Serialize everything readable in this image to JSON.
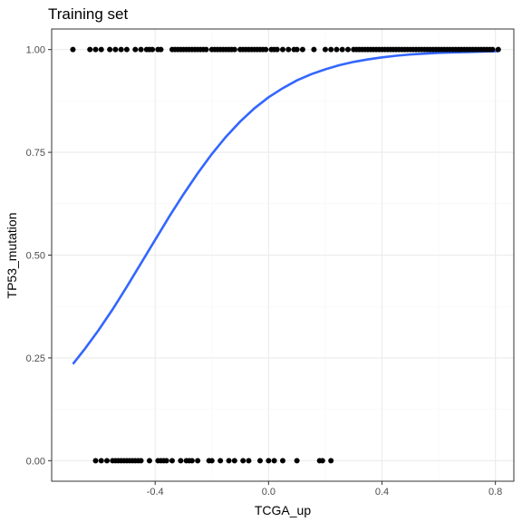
{
  "chart_data": {
    "type": "scatter",
    "title": "Training set",
    "xlabel": "TCGA_up",
    "ylabel": "TP53_mutation",
    "xlim": [
      -0.765,
      0.865
    ],
    "ylim": [
      -0.05,
      1.05
    ],
    "x_ticks": [
      -0.4,
      0.0,
      0.4,
      0.8
    ],
    "x_tick_labels": [
      "-0.4",
      "0.0",
      "0.4",
      "0.8"
    ],
    "y_ticks": [
      0.0,
      0.25,
      0.5,
      0.75,
      1.0
    ],
    "y_tick_labels": [
      "0.00",
      "0.25",
      "0.50",
      "0.75",
      "1.00"
    ],
    "grid": true,
    "legend": "none",
    "colors": {
      "points": "#000000",
      "fit_line": "#3366ff",
      "grid_major": "#ebebeb",
      "grid_minor": "#f5f5f5",
      "panel_border": "#333333"
    },
    "points_y1": [
      -0.69,
      -0.63,
      -0.61,
      -0.59,
      -0.56,
      -0.54,
      -0.52,
      -0.5,
      -0.47,
      -0.45,
      -0.43,
      -0.42,
      -0.41,
      -0.39,
      -0.38,
      -0.34,
      -0.33,
      -0.32,
      -0.31,
      -0.3,
      -0.29,
      -0.28,
      -0.27,
      -0.26,
      -0.25,
      -0.24,
      -0.23,
      -0.22,
      -0.2,
      -0.19,
      -0.18,
      -0.17,
      -0.16,
      -0.15,
      -0.14,
      -0.13,
      -0.12,
      -0.1,
      -0.09,
      -0.08,
      -0.07,
      -0.06,
      -0.05,
      -0.04,
      -0.03,
      -0.02,
      -0.01,
      0.01,
      0.02,
      0.03,
      0.05,
      0.07,
      0.09,
      0.1,
      0.12,
      0.16,
      0.2,
      0.22,
      0.24,
      0.26,
      0.28,
      0.3,
      0.31,
      0.32,
      0.33,
      0.34,
      0.35,
      0.36,
      0.37,
      0.38,
      0.39,
      0.4,
      0.41,
      0.42,
      0.43,
      0.44,
      0.45,
      0.46,
      0.47,
      0.48,
      0.49,
      0.5,
      0.51,
      0.52,
      0.53,
      0.54,
      0.55,
      0.56,
      0.57,
      0.58,
      0.59,
      0.6,
      0.61,
      0.62,
      0.63,
      0.64,
      0.65,
      0.66,
      0.67,
      0.68,
      0.69,
      0.7,
      0.71,
      0.72,
      0.73,
      0.74,
      0.75,
      0.76,
      0.77,
      0.78,
      0.79,
      0.81
    ],
    "points_y0": [
      -0.61,
      -0.59,
      -0.57,
      -0.55,
      -0.54,
      -0.53,
      -0.52,
      -0.51,
      -0.5,
      -0.49,
      -0.48,
      -0.47,
      -0.46,
      -0.45,
      -0.42,
      -0.39,
      -0.38,
      -0.37,
      -0.36,
      -0.34,
      -0.31,
      -0.29,
      -0.28,
      -0.27,
      -0.25,
      -0.21,
      -0.2,
      -0.17,
      -0.14,
      -0.12,
      -0.09,
      -0.07,
      -0.03,
      0.0,
      0.02,
      0.05,
      0.1,
      0.18,
      0.19,
      0.22
    ],
    "fit": {
      "x": [
        -0.69,
        -0.65,
        -0.6,
        -0.55,
        -0.5,
        -0.45,
        -0.4,
        -0.35,
        -0.3,
        -0.25,
        -0.2,
        -0.15,
        -0.1,
        -0.05,
        0.0,
        0.05,
        0.1,
        0.15,
        0.2,
        0.25,
        0.3,
        0.35,
        0.4,
        0.45,
        0.5,
        0.55,
        0.6,
        0.65,
        0.7,
        0.75,
        0.81
      ],
      "y": [
        0.235,
        0.27,
        0.317,
        0.368,
        0.423,
        0.48,
        0.537,
        0.594,
        0.648,
        0.699,
        0.746,
        0.788,
        0.825,
        0.857,
        0.884,
        0.906,
        0.925,
        0.94,
        0.952,
        0.962,
        0.97,
        0.976,
        0.981,
        0.985,
        0.988,
        0.99,
        0.992,
        0.993,
        0.994,
        0.995,
        0.996
      ]
    }
  }
}
